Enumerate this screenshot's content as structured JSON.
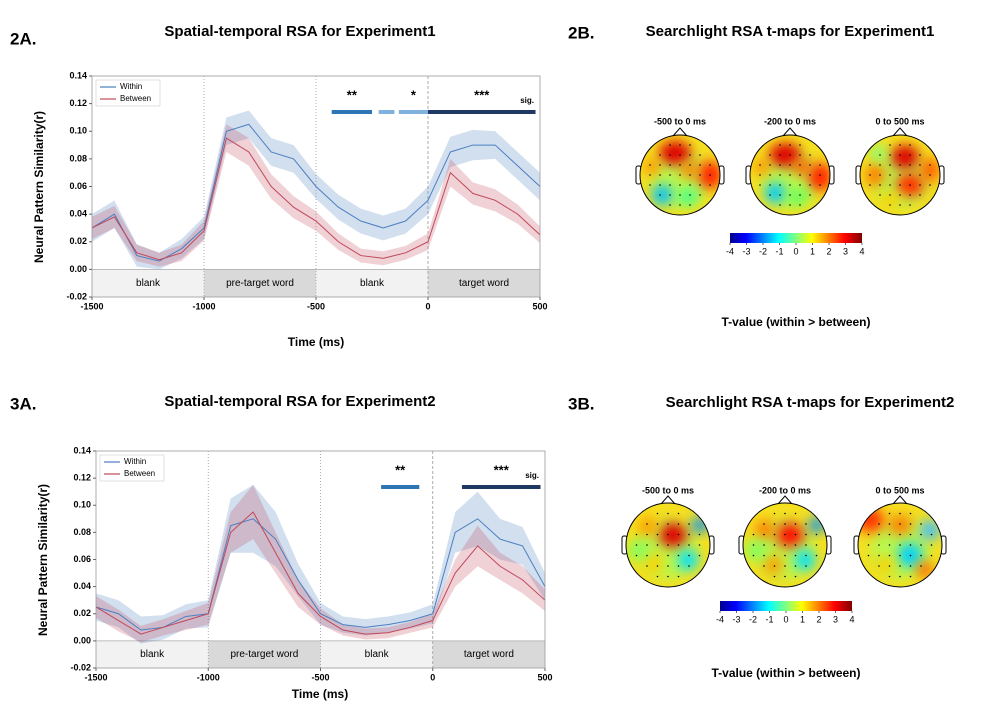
{
  "chart_data": [
    {
      "type": "line",
      "panel": "2A.",
      "title": "Spatial-temporal RSA for Experiment1",
      "xlabel": "Time (ms)",
      "ylabel": "Neural Pattern Similarity(r)",
      "x": [
        -1500,
        -1400,
        -1300,
        -1200,
        -1100,
        -1000,
        -900,
        -800,
        -700,
        -600,
        -500,
        -400,
        -300,
        -200,
        -100,
        0,
        100,
        200,
        300,
        400,
        500
      ],
      "series": [
        {
          "name": "Within",
          "color": "#4a7fc1",
          "values": [
            0.03,
            0.04,
            0.01,
            0.006,
            0.015,
            0.03,
            0.1,
            0.105,
            0.085,
            0.08,
            0.06,
            0.045,
            0.035,
            0.03,
            0.035,
            0.05,
            0.085,
            0.09,
            0.09,
            0.075,
            0.06
          ],
          "error": [
            0.01,
            0.01,
            0.008,
            0.006,
            0.007,
            0.008,
            0.01,
            0.01,
            0.01,
            0.01,
            0.009,
            0.009,
            0.009,
            0.009,
            0.009,
            0.01,
            0.011,
            0.011,
            0.01,
            0.01,
            0.01
          ]
        },
        {
          "name": "Between",
          "color": "#c0485a",
          "values": [
            0.03,
            0.038,
            0.012,
            0.007,
            0.012,
            0.028,
            0.095,
            0.085,
            0.06,
            0.045,
            0.035,
            0.02,
            0.01,
            0.008,
            0.012,
            0.02,
            0.07,
            0.055,
            0.05,
            0.04,
            0.025
          ],
          "error": [
            0.008,
            0.008,
            0.006,
            0.005,
            0.006,
            0.007,
            0.01,
            0.01,
            0.009,
            0.008,
            0.007,
            0.006,
            0.005,
            0.005,
            0.005,
            0.006,
            0.01,
            0.008,
            0.008,
            0.007,
            0.006
          ]
        }
      ],
      "xlim": [
        -1500,
        500
      ],
      "xticks": [
        -1500,
        -1000,
        -500,
        0,
        500
      ],
      "ylim": [
        -0.02,
        0.14
      ],
      "yticks": [
        -0.02,
        {
          "value": 0,
          "label": "0.00"
        },
        0.02,
        0.04,
        0.06,
        0.08,
        {
          "value": 0.1,
          "label": "0.10"
        },
        0.12,
        0.14
      ],
      "legend": "upper left",
      "regions": [
        {
          "label": "blank",
          "range": [
            -1500,
            -1000
          ],
          "color": "#f2f2f2"
        },
        {
          "label": "pre-target word",
          "range": [
            -1000,
            -500
          ],
          "color": "#d9d9d9"
        },
        {
          "label": "blank",
          "range": [
            -500,
            0
          ],
          "color": "#f2f2f2"
        },
        {
          "label": "target word",
          "range": [
            0,
            500
          ],
          "color": "#d9d9d9"
        }
      ],
      "sig_label": "sig.",
      "sig_bars": [
        {
          "label": "**",
          "range": [
            -430,
            -250
          ],
          "color": "#2e75b6"
        },
        {
          "label": null,
          "range": [
            -220,
            -150
          ],
          "color": "#7fb3de"
        },
        {
          "label": "*",
          "range": [
            -130,
            0
          ],
          "color": "#7fb3de"
        },
        {
          "label": "***",
          "range": [
            0,
            480
          ],
          "color": "#1f3864"
        }
      ]
    },
    {
      "type": "topomap",
      "panel": "2B.",
      "title": "Searchlight RSA t-maps for Experiment1",
      "maps": [
        "-500 to 0 ms",
        "-200 to 0 ms",
        "0 to 500 ms"
      ],
      "colorbar_lim": [
        -4,
        4
      ],
      "colorbar_ticks": [
        -4,
        -3,
        -2,
        -1,
        0,
        1,
        2,
        3,
        4
      ],
      "colorbar_label": "T-value (within > between)"
    },
    {
      "type": "line",
      "panel": "3A.",
      "title": "Spatial-temporal RSA for Experiment2",
      "xlabel": "Time (ms)",
      "ylabel": "Neural Pattern Similarity(r)",
      "x": [
        -1500,
        -1400,
        -1300,
        -1200,
        -1100,
        -1000,
        -900,
        -800,
        -700,
        -600,
        -500,
        -400,
        -300,
        -200,
        -100,
        0,
        100,
        200,
        300,
        400,
        500
      ],
      "series": [
        {
          "name": "Within",
          "color": "#4a7fc1",
          "values": [
            0.025,
            0.02,
            0.008,
            0.01,
            0.018,
            0.02,
            0.085,
            0.09,
            0.075,
            0.045,
            0.02,
            0.012,
            0.01,
            0.012,
            0.015,
            0.02,
            0.08,
            0.09,
            0.075,
            0.07,
            0.04
          ],
          "error": [
            0.01,
            0.01,
            0.01,
            0.009,
            0.009,
            0.01,
            0.02,
            0.025,
            0.02,
            0.012,
            0.008,
            0.006,
            0.006,
            0.006,
            0.006,
            0.007,
            0.015,
            0.02,
            0.015,
            0.014,
            0.01
          ]
        },
        {
          "name": "Between",
          "color": "#c0485a",
          "values": [
            0.025,
            0.015,
            0.005,
            0.01,
            0.015,
            0.02,
            0.08,
            0.095,
            0.065,
            0.035,
            0.018,
            0.008,
            0.005,
            0.006,
            0.01,
            0.015,
            0.05,
            0.07,
            0.055,
            0.045,
            0.03
          ],
          "error": [
            0.008,
            0.008,
            0.006,
            0.006,
            0.007,
            0.008,
            0.015,
            0.02,
            0.015,
            0.01,
            0.006,
            0.004,
            0.004,
            0.004,
            0.004,
            0.005,
            0.01,
            0.015,
            0.01,
            0.01,
            0.008
          ]
        }
      ],
      "xlim": [
        -1500,
        500
      ],
      "xticks": [
        -1500,
        -1000,
        -500,
        0,
        500
      ],
      "ylim": [
        -0.02,
        0.14
      ],
      "yticks": [
        -0.02,
        {
          "value": 0,
          "label": "0.00"
        },
        0.02,
        0.04,
        0.06,
        0.08,
        {
          "value": 0.1,
          "label": "0.10"
        },
        0.12,
        0.14
      ],
      "legend": "upper left",
      "regions": [
        {
          "label": "blank",
          "range": [
            -1500,
            -1000
          ],
          "color": "#f2f2f2"
        },
        {
          "label": "pre-target word",
          "range": [
            -1000,
            -500
          ],
          "color": "#d9d9d9"
        },
        {
          "label": "blank",
          "range": [
            -500,
            0
          ],
          "color": "#f2f2f2"
        },
        {
          "label": "target word",
          "range": [
            0,
            500
          ],
          "color": "#d9d9d9"
        }
      ],
      "sig_label": "sig.",
      "sig_bars": [
        {
          "label": "**",
          "range": [
            -230,
            -60
          ],
          "color": "#2e75b6"
        },
        {
          "label": "***",
          "range": [
            130,
            480
          ],
          "color": "#1f3864"
        }
      ]
    },
    {
      "type": "topomap",
      "panel": "3B.",
      "title": "Searchlight RSA t-maps for Experiment2",
      "maps": [
        "-500 to 0 ms",
        "-200 to 0 ms",
        "0 to 500 ms"
      ],
      "colorbar_lim": [
        -4,
        4
      ],
      "colorbar_ticks": [
        -4,
        -3,
        -2,
        -1,
        0,
        1,
        2,
        3,
        4
      ],
      "colorbar_label": "T-value (within > between)"
    }
  ]
}
